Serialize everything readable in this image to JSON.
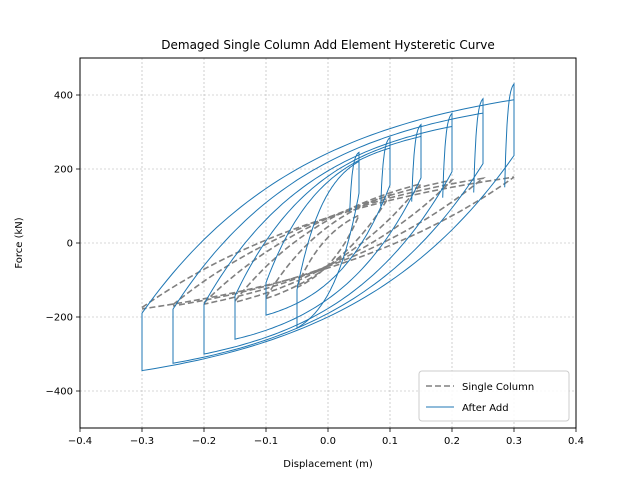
{
  "chart_data": {
    "type": "line",
    "title": "Demaged Single Column Add Element Hysteretic Curve",
    "xlabel": "Displacement (m)",
    "ylabel": "Force (kN)",
    "xlim": [
      -0.4,
      0.4
    ],
    "ylim": [
      -500,
      500
    ],
    "xticks": [
      -0.4,
      -0.3,
      -0.2,
      -0.1,
      0.0,
      0.1,
      0.2,
      0.3,
      0.4
    ],
    "xtick_labels": [
      "−0.4",
      "−0.3",
      "−0.2",
      "−0.1",
      "0.0",
      "0.1",
      "0.2",
      "0.3",
      "0.4"
    ],
    "yticks": [
      -400,
      -200,
      0,
      200,
      400
    ],
    "ytick_labels": [
      "−400",
      "−200",
      "0",
      "200",
      "400"
    ],
    "grid": true,
    "legend": "lower-right",
    "series": [
      {
        "name": "Single Column",
        "color": "#808080",
        "style": "dashed",
        "cycles": [
          {
            "amp": 0.05,
            "peak": 75,
            "tail": 120
          },
          {
            "amp": 0.1,
            "peak": 130,
            "tail": 150
          },
          {
            "amp": 0.15,
            "peak": 160,
            "tail": 160
          },
          {
            "amp": 0.2,
            "peak": 170,
            "tail": 165
          },
          {
            "amp": 0.25,
            "peak": 175,
            "tail": 170
          },
          {
            "amp": 0.3,
            "peak": 178,
            "tail": 178
          }
        ]
      },
      {
        "name": "After Add",
        "color": "#1f77b4",
        "style": "solid",
        "cycles": [
          {
            "amp": 0.05,
            "peak": 245,
            "neg": 230
          },
          {
            "amp": 0.1,
            "peak": 285,
            "neg": 195
          },
          {
            "amp": 0.15,
            "peak": 320,
            "neg": 260
          },
          {
            "amp": 0.2,
            "peak": 350,
            "neg": 300
          },
          {
            "amp": 0.25,
            "peak": 390,
            "neg": 325
          },
          {
            "amp": 0.3,
            "peak": 430,
            "neg": 345
          }
        ]
      }
    ]
  }
}
